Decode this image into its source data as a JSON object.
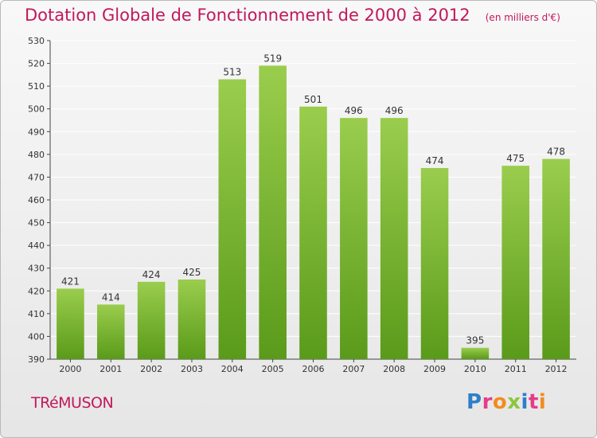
{
  "title": "Dotation Globale de Fonctionnement de 2000 à 2012",
  "unit_note": "(en milliers d'€)",
  "commune": "TRéMUSON",
  "logo": {
    "text": "Proxiti",
    "letter_colors": [
      "#2e7fc8",
      "#e63b8a",
      "#f28c1e",
      "#8cc63f",
      "#2e7fc8",
      "#e63b8a",
      "#f28c1e"
    ]
  },
  "colors": {
    "title": "#c2185b",
    "bar_light": "#9acd4d",
    "bar_dark": "#5a9a1a",
    "grid": "#ffffff",
    "axis": "#444444"
  },
  "chart_data": {
    "type": "bar",
    "categories": [
      "2000",
      "2001",
      "2002",
      "2003",
      "2004",
      "2005",
      "2006",
      "2007",
      "2008",
      "2009",
      "2010",
      "2011",
      "2012"
    ],
    "values": [
      421,
      414,
      424,
      425,
      513,
      519,
      501,
      496,
      496,
      474,
      395,
      475,
      478
    ],
    "ylim": [
      390,
      530
    ],
    "yticks": [
      390,
      400,
      410,
      420,
      430,
      440,
      450,
      460,
      470,
      480,
      490,
      500,
      510,
      520,
      530
    ],
    "grid": true,
    "xlabel": "",
    "ylabel": ""
  }
}
